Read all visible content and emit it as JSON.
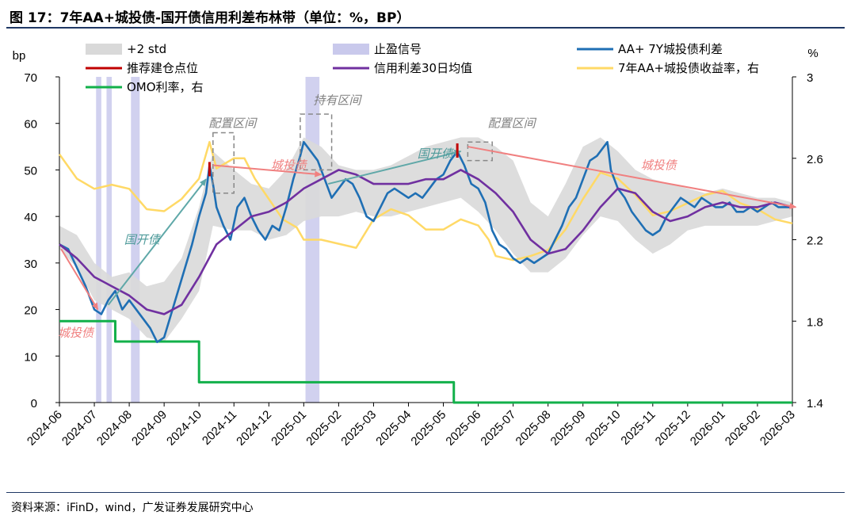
{
  "title": "图 17：7年AA+城投债-国开债信用利差布林带（单位：%，BP）",
  "source": "资料来源：iFinD，wind，广发证券发展研究中心",
  "colors": {
    "spread": "#1f6fb4",
    "ma30": "#7030a0",
    "yield": "#ffd966",
    "omo": "#12b04a",
    "band": "#d9d9d9",
    "takeprofit": "#c9c9ec",
    "rec": "#c00000",
    "arrow_red": "#f08080",
    "arrow_teal": "#5fa8a8",
    "box": "#888888",
    "annot_teal": "#4e9a9a",
    "annot_red": "#f08080",
    "annot_grey": "#808080"
  },
  "chart_data": {
    "type": "line",
    "title": "7年AA+城投债-国开债信用利差布林带",
    "left_axis": {
      "label": "bp",
      "min": 0,
      "max": 70,
      "ticks": [
        "0",
        "10",
        "20",
        "30",
        "40",
        "50",
        "60",
        "70"
      ]
    },
    "right_axis": {
      "label": "%",
      "min": 1.4,
      "max": 3.0,
      "ticks": [
        "1.4",
        "1.8",
        "2.2",
        "2.6",
        "3"
      ]
    },
    "x_range": [
      0,
      21
    ],
    "x_ticks": [
      "2024-06",
      "2024-07",
      "2024-08",
      "2024-09",
      "2024-10",
      "2024-11",
      "2024-12",
      "2025-01",
      "2025-02",
      "2025-03",
      "2025-04",
      "2025-05",
      "2025-06",
      "2025-07",
      "2025-08",
      "2025-09",
      "2025-10",
      "2025-11",
      "2025-12",
      "2026-01",
      "2026-02",
      "2026-03"
    ],
    "legend": [
      {
        "key": "band",
        "label": "+2 std"
      },
      {
        "key": "takeprofit",
        "label": "止盈信号"
      },
      {
        "key": "spread",
        "label": "AA+ 7Y城投债利差"
      },
      {
        "key": "rec",
        "label": "推荐建仓点位"
      },
      {
        "key": "ma30",
        "label": "信用利差30日均值"
      },
      {
        "key": "yield",
        "label": "7年AA+城投债收益率，右"
      },
      {
        "key": "omo",
        "label": "OMO利率，右"
      }
    ],
    "band_upper": [
      [
        0,
        38
      ],
      [
        0.5,
        36
      ],
      [
        1,
        30
      ],
      [
        1.5,
        27
      ],
      [
        2,
        28
      ],
      [
        2.5,
        25
      ],
      [
        3,
        26
      ],
      [
        3.5,
        31
      ],
      [
        4,
        42
      ],
      [
        4.4,
        54
      ],
      [
        5,
        50
      ],
      [
        5.5,
        47
      ],
      [
        6,
        46
      ],
      [
        6.5,
        50
      ],
      [
        7,
        57
      ],
      [
        7.5,
        55
      ],
      [
        8,
        51
      ],
      [
        8.5,
        50
      ],
      [
        9,
        50
      ],
      [
        9.5,
        51
      ],
      [
        10,
        53
      ],
      [
        10.5,
        55
      ],
      [
        11,
        56
      ],
      [
        11.5,
        57
      ],
      [
        12,
        57
      ],
      [
        12.5,
        55
      ],
      [
        13,
        52
      ],
      [
        13.5,
        43
      ],
      [
        14,
        40
      ],
      [
        14.5,
        47
      ],
      [
        15,
        55
      ],
      [
        15.5,
        57
      ],
      [
        16,
        54
      ],
      [
        16.5,
        50
      ],
      [
        17,
        48
      ],
      [
        17.5,
        47
      ],
      [
        18,
        46
      ],
      [
        18.5,
        45
      ],
      [
        19,
        46
      ],
      [
        19.5,
        45
      ],
      [
        20,
        44
      ],
      [
        20.5,
        44
      ],
      [
        21,
        43
      ]
    ],
    "band_lower": [
      [
        0,
        33
      ],
      [
        0.5,
        29
      ],
      [
        1,
        22
      ],
      [
        1.5,
        20
      ],
      [
        2,
        18
      ],
      [
        2.5,
        14
      ],
      [
        3,
        13
      ],
      [
        3.5,
        18
      ],
      [
        4,
        24
      ],
      [
        4.4,
        38
      ],
      [
        5,
        37
      ],
      [
        5.5,
        37
      ],
      [
        6,
        35
      ],
      [
        6.5,
        36
      ],
      [
        7,
        39
      ],
      [
        7.5,
        40
      ],
      [
        8,
        40
      ],
      [
        8.5,
        41
      ],
      [
        9,
        40
      ],
      [
        9.5,
        40
      ],
      [
        10,
        41
      ],
      [
        10.5,
        42
      ],
      [
        11,
        43
      ],
      [
        11.5,
        44
      ],
      [
        12,
        41
      ],
      [
        12.5,
        37
      ],
      [
        13,
        32
      ],
      [
        13.5,
        28
      ],
      [
        14,
        28
      ],
      [
        14.5,
        31
      ],
      [
        15,
        36
      ],
      [
        15.5,
        40
      ],
      [
        16,
        39
      ],
      [
        16.5,
        35
      ],
      [
        17,
        32
      ],
      [
        17.5,
        34
      ],
      [
        18,
        37
      ],
      [
        18.5,
        38
      ],
      [
        19,
        38
      ],
      [
        19.5,
        38
      ],
      [
        20,
        38
      ],
      [
        20.5,
        39
      ],
      [
        21,
        40
      ]
    ],
    "spread": [
      [
        0,
        34
      ],
      [
        0.25,
        33
      ],
      [
        0.5,
        29
      ],
      [
        0.75,
        25
      ],
      [
        1,
        20
      ],
      [
        1.2,
        19
      ],
      [
        1.4,
        22
      ],
      [
        1.6,
        24
      ],
      [
        1.8,
        20
      ],
      [
        2,
        22
      ],
      [
        2.2,
        20
      ],
      [
        2.4,
        18
      ],
      [
        2.6,
        16
      ],
      [
        2.8,
        13
      ],
      [
        3,
        14
      ],
      [
        3.2,
        19
      ],
      [
        3.4,
        24
      ],
      [
        3.6,
        29
      ],
      [
        3.8,
        34
      ],
      [
        4,
        40
      ],
      [
        4.2,
        45
      ],
      [
        4.3,
        51
      ],
      [
        4.4,
        47
      ],
      [
        4.5,
        42
      ],
      [
        4.7,
        38
      ],
      [
        4.9,
        35
      ],
      [
        5.1,
        42
      ],
      [
        5.3,
        44
      ],
      [
        5.5,
        40
      ],
      [
        5.7,
        37
      ],
      [
        5.9,
        35
      ],
      [
        6.1,
        38
      ],
      [
        6.3,
        37
      ],
      [
        6.5,
        42
      ],
      [
        6.7,
        48
      ],
      [
        6.9,
        53
      ],
      [
        7,
        56
      ],
      [
        7.2,
        54
      ],
      [
        7.4,
        52
      ],
      [
        7.6,
        48
      ],
      [
        7.8,
        44
      ],
      [
        8,
        46
      ],
      [
        8.2,
        48
      ],
      [
        8.4,
        47
      ],
      [
        8.6,
        44
      ],
      [
        8.8,
        40
      ],
      [
        9,
        39
      ],
      [
        9.2,
        42
      ],
      [
        9.4,
        45
      ],
      [
        9.6,
        46
      ],
      [
        9.8,
        45
      ],
      [
        10,
        44
      ],
      [
        10.2,
        45
      ],
      [
        10.4,
        44
      ],
      [
        10.6,
        46
      ],
      [
        10.8,
        48
      ],
      [
        11,
        49
      ],
      [
        11.2,
        52
      ],
      [
        11.4,
        54
      ],
      [
        11.6,
        51
      ],
      [
        11.8,
        47
      ],
      [
        12,
        46
      ],
      [
        12.2,
        43
      ],
      [
        12.4,
        37
      ],
      [
        12.6,
        34
      ],
      [
        12.8,
        33
      ],
      [
        13,
        31
      ],
      [
        13.2,
        30
      ],
      [
        13.4,
        31
      ],
      [
        13.6,
        30
      ],
      [
        13.8,
        31
      ],
      [
        14,
        32
      ],
      [
        14.2,
        35
      ],
      [
        14.4,
        38
      ],
      [
        14.6,
        42
      ],
      [
        14.8,
        44
      ],
      [
        15,
        48
      ],
      [
        15.2,
        52
      ],
      [
        15.4,
        53
      ],
      [
        15.6,
        55
      ],
      [
        15.7,
        56
      ],
      [
        15.8,
        50
      ],
      [
        16,
        46
      ],
      [
        16.2,
        44
      ],
      [
        16.4,
        41
      ],
      [
        16.6,
        39
      ],
      [
        16.8,
        37
      ],
      [
        17,
        36
      ],
      [
        17.2,
        37
      ],
      [
        17.4,
        40
      ],
      [
        17.6,
        42
      ],
      [
        17.8,
        44
      ],
      [
        18,
        43
      ],
      [
        18.2,
        42
      ],
      [
        18.4,
        44
      ],
      [
        18.6,
        43
      ],
      [
        18.8,
        42
      ],
      [
        19,
        42
      ],
      [
        19.2,
        43
      ],
      [
        19.4,
        41
      ],
      [
        19.6,
        41
      ],
      [
        19.8,
        42
      ],
      [
        20,
        41
      ],
      [
        20.2,
        42
      ],
      [
        20.4,
        43
      ],
      [
        20.6,
        42
      ],
      [
        20.8,
        42
      ],
      [
        21,
        42
      ]
    ],
    "ma30": [
      [
        0,
        34
      ],
      [
        0.5,
        31
      ],
      [
        1,
        27
      ],
      [
        1.5,
        25
      ],
      [
        2,
        23
      ],
      [
        2.5,
        20
      ],
      [
        3,
        19
      ],
      [
        3.5,
        21
      ],
      [
        4,
        27
      ],
      [
        4.5,
        34
      ],
      [
        5,
        37
      ],
      [
        5.5,
        40
      ],
      [
        6,
        41
      ],
      [
        6.5,
        43
      ],
      [
        7,
        46
      ],
      [
        7.5,
        48
      ],
      [
        8,
        50
      ],
      [
        8.5,
        49
      ],
      [
        9,
        47
      ],
      [
        9.5,
        47
      ],
      [
        10,
        47
      ],
      [
        10.5,
        48
      ],
      [
        11,
        48
      ],
      [
        11.5,
        50
      ],
      [
        12,
        48
      ],
      [
        12.5,
        45
      ],
      [
        13,
        41
      ],
      [
        13.5,
        35
      ],
      [
        14,
        32
      ],
      [
        14.5,
        33
      ],
      [
        15,
        37
      ],
      [
        15.5,
        42
      ],
      [
        16,
        46
      ],
      [
        16.5,
        45
      ],
      [
        17,
        41
      ],
      [
        17.5,
        39
      ],
      [
        18,
        40
      ],
      [
        18.5,
        42
      ],
      [
        19,
        43
      ],
      [
        19.5,
        42
      ],
      [
        20,
        42
      ],
      [
        20.5,
        43
      ],
      [
        21,
        42
      ]
    ],
    "yield": [
      [
        0,
        2.62
      ],
      [
        0.5,
        2.5
      ],
      [
        1,
        2.45
      ],
      [
        1.5,
        2.47
      ],
      [
        2,
        2.45
      ],
      [
        2.5,
        2.35
      ],
      [
        3,
        2.34
      ],
      [
        3.5,
        2.4
      ],
      [
        4,
        2.5
      ],
      [
        4.3,
        2.68
      ],
      [
        4.5,
        2.55
      ],
      [
        5,
        2.6
      ],
      [
        5.3,
        2.6
      ],
      [
        5.6,
        2.5
      ],
      [
        6,
        2.4
      ],
      [
        6.4,
        2.3
      ],
      [
        6.8,
        2.26
      ],
      [
        7,
        2.2
      ],
      [
        7.5,
        2.2
      ],
      [
        8,
        2.18
      ],
      [
        8.5,
        2.16
      ],
      [
        9,
        2.3
      ],
      [
        9.5,
        2.35
      ],
      [
        10,
        2.32
      ],
      [
        10.5,
        2.25
      ],
      [
        11,
        2.25
      ],
      [
        11.5,
        2.3
      ],
      [
        12,
        2.27
      ],
      [
        12.3,
        2.2
      ],
      [
        12.5,
        2.12
      ],
      [
        13,
        2.1
      ],
      [
        13.5,
        2.12
      ],
      [
        14,
        2.15
      ],
      [
        14.5,
        2.25
      ],
      [
        15,
        2.4
      ],
      [
        15.5,
        2.53
      ],
      [
        16,
        2.5
      ],
      [
        16.5,
        2.42
      ],
      [
        17,
        2.32
      ],
      [
        17.5,
        2.34
      ],
      [
        18,
        2.38
      ],
      [
        18.5,
        2.42
      ],
      [
        19,
        2.44
      ],
      [
        19.5,
        2.38
      ],
      [
        20,
        2.35
      ],
      [
        20.5,
        2.3
      ],
      [
        21,
        2.28
      ]
    ],
    "omo": [
      [
        0,
        1.8
      ],
      [
        1.6,
        1.8
      ],
      [
        1.6,
        1.7
      ],
      [
        4,
        1.7
      ],
      [
        4,
        1.5
      ],
      [
        11.3,
        1.5
      ],
      [
        11.3,
        1.4
      ],
      [
        21,
        1.4
      ]
    ],
    "take_profit": [
      [
        1.05,
        1.2
      ],
      [
        1.35,
        1.5
      ],
      [
        2.05,
        2.3
      ],
      [
        7.05,
        7.45
      ]
    ],
    "recommended_points": [
      [
        4.3,
        50
      ],
      [
        11.4,
        54
      ]
    ],
    "annotations": [
      {
        "text": "城投债",
        "x": 0.5,
        "y": 15,
        "color": "annot_red"
      },
      {
        "text": "国开债",
        "x": 2.4,
        "y": 35,
        "color": "annot_teal"
      },
      {
        "text": "配置区间",
        "x": 5.0,
        "y": 60,
        "color": "annot_grey"
      },
      {
        "text": "持有区间",
        "x": 8.0,
        "y": 65,
        "color": "annot_grey"
      },
      {
        "text": "城投债",
        "x": 6.6,
        "y": 51,
        "color": "annot_red"
      },
      {
        "text": "国开债",
        "x": 10.8,
        "y": 53.5,
        "color": "annot_teal"
      },
      {
        "text": "配置区间",
        "x": 13.0,
        "y": 60,
        "color": "annot_grey"
      },
      {
        "text": "城投债",
        "x": 17.2,
        "y": 51,
        "color": "annot_red"
      }
    ],
    "boxes": [
      [
        4.4,
        5.0,
        45,
        58
      ],
      [
        6.9,
        7.8,
        50,
        62
      ],
      [
        11.7,
        12.4,
        52,
        56
      ]
    ],
    "arrows": [
      {
        "from": [
          0.05,
          33
        ],
        "to": [
          1.1,
          20
        ],
        "color": "arrow_red"
      },
      {
        "from": [
          1.4,
          21
        ],
        "to": [
          4.2,
          48
        ],
        "color": "arrow_teal"
      },
      {
        "from": [
          4.4,
          51
        ],
        "to": [
          7.5,
          49
        ],
        "color": "arrow_red"
      },
      {
        "from": [
          7.7,
          47
        ],
        "to": [
          11.5,
          54
        ],
        "color": "arrow_teal"
      },
      {
        "from": [
          11.7,
          55
        ],
        "to": [
          21.1,
          42
        ],
        "color": "arrow_red"
      }
    ]
  }
}
